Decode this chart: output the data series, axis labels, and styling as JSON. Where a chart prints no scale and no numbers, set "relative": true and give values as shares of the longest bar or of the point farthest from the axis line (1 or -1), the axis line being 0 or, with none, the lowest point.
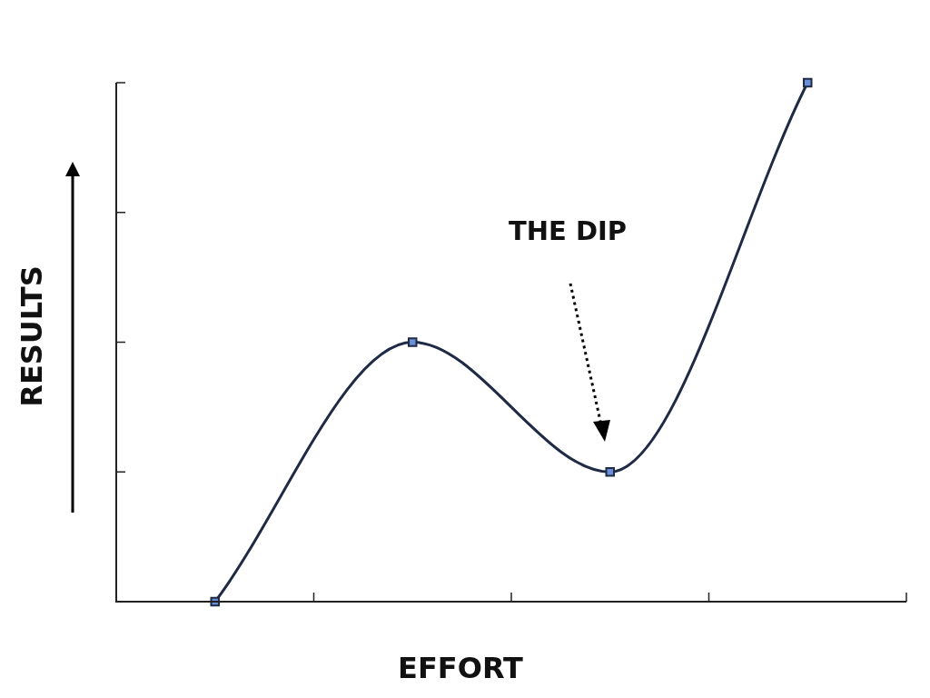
{
  "chart_data": {
    "type": "line",
    "relative": true,
    "xlabel": "EFFORT",
    "ylabel": "RESULTS",
    "annotations": [
      "THE DIP"
    ],
    "categories": [
      null,
      null,
      null,
      null
    ],
    "series": [
      {
        "color": "#1f2a44",
        "values": [
          0,
          0.5,
          0.25,
          1
        ]
      }
    ],
    "marker": "square",
    "legend": false
  }
}
